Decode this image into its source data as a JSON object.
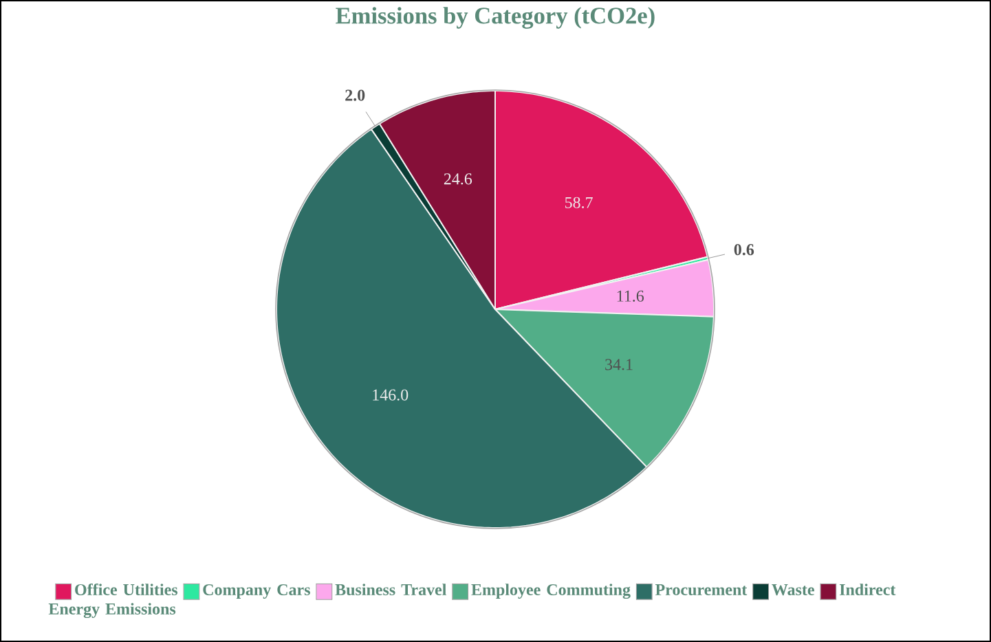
{
  "chart_data": {
    "type": "pie",
    "title": "Emissions by Category (tCO2e)",
    "categories": [
      "Office Utilities",
      "Company Cars",
      "Business Travel",
      "Employee Commuting",
      "Procurement",
      "Waste",
      "Indirect Energy Emissions"
    ],
    "values": [
      58.7,
      0.6,
      11.6,
      34.1,
      146.0,
      2.0,
      24.6
    ],
    "colors": [
      "#e0185e",
      "#2ee8a0",
      "#fca8ec",
      "#52ae88",
      "#2e6e66",
      "#0a3d36",
      "#850f38"
    ],
    "value_labels": [
      "58.7",
      "0.6",
      "11.6",
      "34.1",
      "146.0",
      "2.0",
      "24.6"
    ],
    "legend": "bottom"
  }
}
